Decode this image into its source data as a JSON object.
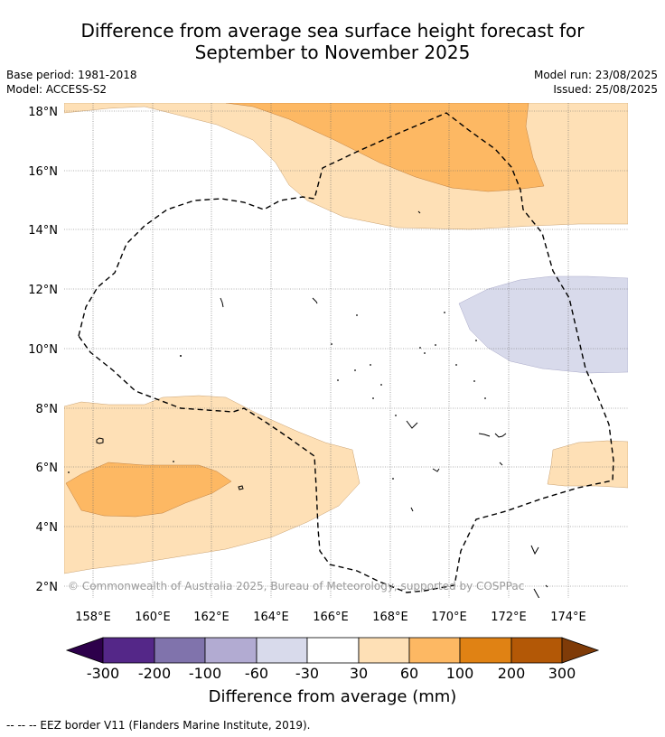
{
  "title": {
    "line1": "Difference from average sea surface height forecast for",
    "line2": "September to November 2025"
  },
  "meta": {
    "base_period": "Base period: 1981-2018",
    "model": "Model: ACCESS-S2",
    "model_run": "Model run: 23/08/2025",
    "issued": "Issued: 25/08/2025"
  },
  "map": {
    "lon_range": [
      157,
      176
    ],
    "lat_range": [
      1.5,
      18.3
    ],
    "lon_ticks": [
      "158°E",
      "160°E",
      "162°E",
      "164°E",
      "166°E",
      "168°E",
      "170°E",
      "172°E",
      "174°E"
    ],
    "lat_ticks": [
      "2°N",
      "4°N",
      "6°N",
      "8°N",
      "10°N",
      "12°N",
      "14°N",
      "16°N",
      "18°N"
    ],
    "copyright": "© Commonwealth of Australia 2025, Bureau of Meteorology, supported by COSPPac",
    "gridlines": true
  },
  "colorbar": {
    "title": "Difference from average (mm)",
    "tick_labels": [
      "-300",
      "-200",
      "-100",
      "-60",
      "-30",
      "30",
      "60",
      "100",
      "200",
      "300"
    ],
    "colors": [
      "#2d004b",
      "#542788",
      "#8073ac",
      "#b2abd2",
      "#d8daeb",
      "#ffffff",
      "#fee0b6",
      "#fdb863",
      "#e08214",
      "#b35806",
      "#7f3b08"
    ],
    "extend": "both"
  },
  "footnote": "--  --  -- EEZ border V11 (Flanders Marine Institute, 2019)."
}
